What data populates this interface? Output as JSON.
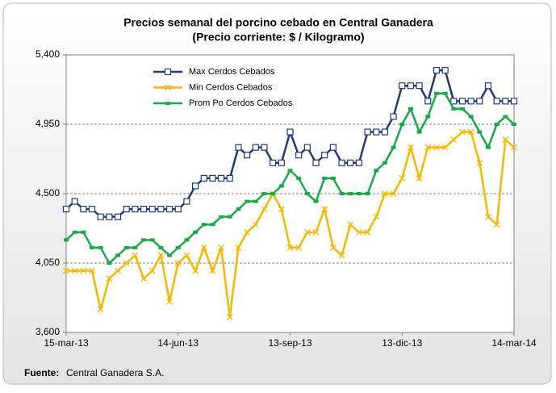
{
  "chart_data": {
    "type": "line",
    "title": "Precios semanal del porcino cebado en Central Ganadera",
    "subtitle": "(Precio corriente: $ / Kilogramo)",
    "categories": [
      "15-mar-13",
      null,
      null,
      null,
      null,
      null,
      null,
      null,
      null,
      null,
      null,
      null,
      null,
      "14-jun-13",
      null,
      null,
      null,
      null,
      null,
      null,
      null,
      null,
      null,
      null,
      null,
      null,
      "13-sep-13",
      null,
      null,
      null,
      null,
      null,
      null,
      null,
      null,
      null,
      null,
      null,
      null,
      "13-dic-13",
      null,
      null,
      null,
      null,
      null,
      null,
      null,
      null,
      null,
      null,
      null,
      null,
      "14-mar-14"
    ],
    "series": [
      {
        "name": "Max Cerdos Cebados",
        "color": "#1f3a7a",
        "marker": "square",
        "values": [
          4400,
          4450,
          4400,
          4400,
          4350,
          4350,
          4350,
          4400,
          4400,
          4400,
          4400,
          4400,
          4400,
          4400,
          4450,
          4550,
          4600,
          4600,
          4600,
          4600,
          4800,
          4750,
          4800,
          4800,
          4700,
          4700,
          4900,
          4750,
          4800,
          4700,
          4750,
          4800,
          4700,
          4700,
          4700,
          4900,
          4900,
          4900,
          5000,
          5200,
          5200,
          5200,
          5100,
          5300,
          5300,
          5100,
          5100,
          5100,
          5100,
          5200,
          5100,
          5100,
          5100
        ]
      },
      {
        "name": "Min Cerdos Cebados",
        "color": "#f5b800",
        "marker": "x",
        "values": [
          4000,
          4000,
          4000,
          4000,
          3750,
          3950,
          4000,
          4050,
          4100,
          3950,
          4000,
          4100,
          3800,
          4050,
          4100,
          4000,
          4150,
          4000,
          4150,
          3700,
          4150,
          4250,
          4300,
          4400,
          4500,
          4400,
          4150,
          4150,
          4250,
          4250,
          4400,
          4150,
          4100,
          4300,
          4250,
          4250,
          4350,
          4500,
          4500,
          4600,
          4800,
          4600,
          4800,
          4800,
          4800,
          4850,
          4900,
          4900,
          4700,
          4350,
          4300,
          4850,
          4800
        ]
      },
      {
        "name": "Prom Po Cerdos Cebados",
        "color": "#1aa84a",
        "marker": "dash",
        "values": [
          4200,
          4250,
          4250,
          4150,
          4150,
          4050,
          4100,
          4150,
          4150,
          4200,
          4200,
          4150,
          4100,
          4150,
          4200,
          4250,
          4300,
          4300,
          4350,
          4350,
          4400,
          4450,
          4450,
          4500,
          4500,
          4550,
          4650,
          4600,
          4500,
          4450,
          4600,
          4600,
          4500,
          4500,
          4500,
          4500,
          4650,
          4700,
          4800,
          4950,
          5050,
          4900,
          5000,
          5150,
          5150,
          5050,
          5050,
          5000,
          4900,
          4800,
          4950,
          5000,
          4950
        ]
      }
    ],
    "ylim": [
      3600,
      5400
    ],
    "yticks": [
      {
        "value": 3600,
        "label": "3,600"
      },
      {
        "value": 4050,
        "label": "4,050"
      },
      {
        "value": 4500,
        "label": "4,500"
      },
      {
        "value": 4950,
        "label": "4,950"
      },
      {
        "value": 5400,
        "label": "5,400"
      }
    ],
    "grid": true,
    "legend": "upper-left",
    "source_label": "Fuente:",
    "source_text": "Central Ganadera S.A."
  }
}
